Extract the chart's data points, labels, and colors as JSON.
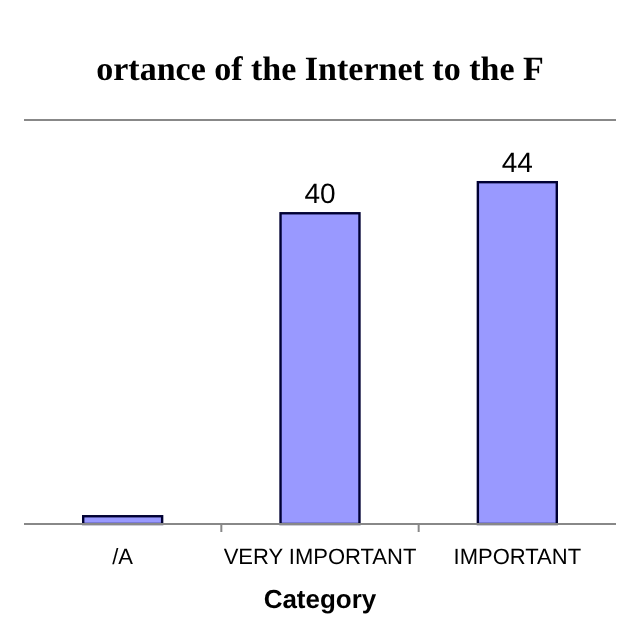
{
  "chart_data": {
    "type": "bar",
    "title": "ortance of the Internet to the F",
    "xlabel": "Category",
    "categories": [
      "/A",
      "VERY IMPORTANT",
      "IMPORTANT"
    ],
    "values": [
      1,
      40,
      44
    ],
    "value_labels": [
      null,
      "40",
      "44"
    ],
    "color": "#9999ff"
  }
}
